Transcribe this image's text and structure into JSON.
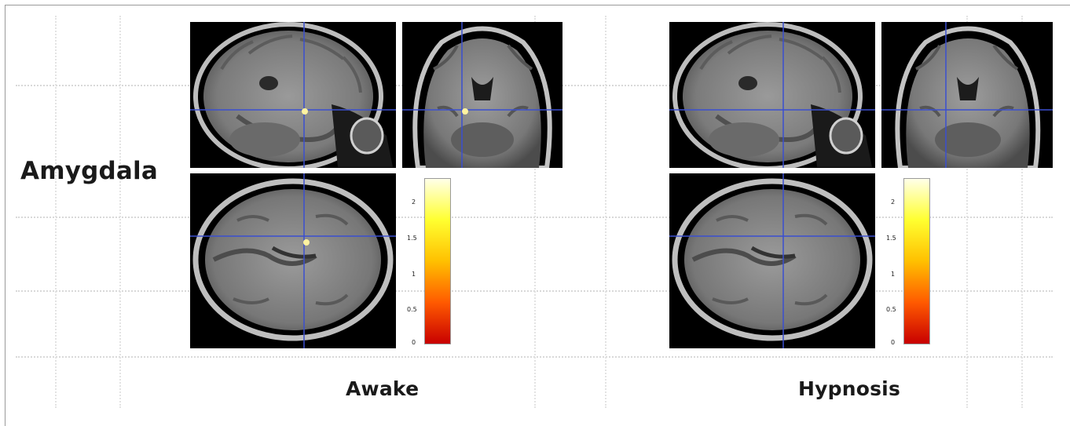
{
  "figure": {
    "region_label": "Amygdala",
    "conditions": [
      {
        "label": "Awake",
        "activation_visible": true
      },
      {
        "label": "Hypnosis",
        "activation_visible": false
      }
    ],
    "views": [
      "sagittal",
      "coronal",
      "axial"
    ],
    "colorbar": {
      "ticks": [
        "2",
        "1.5",
        "1",
        "0.5",
        "0"
      ],
      "colors": [
        "#ffffe0",
        "#ffff20",
        "#ffb000",
        "#ff5000",
        "#c00000"
      ]
    },
    "crosshair_color": "#3a4fd0",
    "activation_color": "#fff3a0"
  }
}
